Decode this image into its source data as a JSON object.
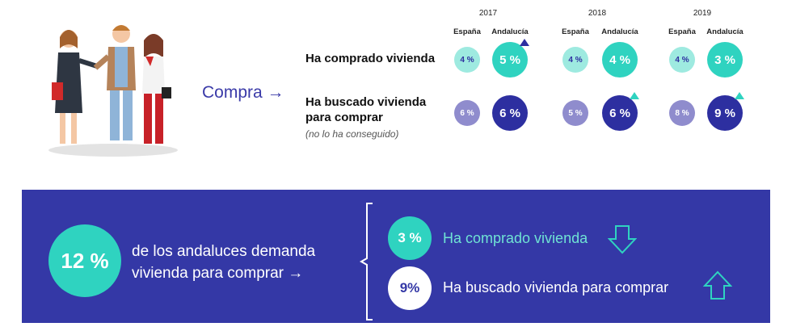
{
  "header": {
    "compra_label": "Compra →"
  },
  "rows": [
    {
      "label_line1": "Ha comprado vivienda",
      "label_line2": ""
    },
    {
      "label_line1": "Ha buscado vivienda",
      "label_line2": "para comprar",
      "note": "(no lo ha conseguido)"
    }
  ],
  "columns": {
    "espana": "España",
    "andalucia": "Andalucía"
  },
  "colors": {
    "teal": "#2fd3c0",
    "teal_light": "#9eeae0",
    "navy": "#2d2fa0",
    "lavender": "#8f8ccd",
    "band": "#3438a6"
  },
  "chart_data": {
    "type": "bubble_table",
    "years": [
      "2017",
      "2018",
      "2019"
    ],
    "series": [
      {
        "row": "Ha comprado vivienda",
        "espana_labels": [
          "4 %",
          "4 %",
          "4 %"
        ],
        "espana": [
          4,
          4,
          4
        ],
        "andalucia_labels": [
          "5 %",
          "4 %",
          "3 %"
        ],
        "andalucia": [
          5,
          4,
          3
        ],
        "trend_marker": [
          true,
          false,
          false
        ]
      },
      {
        "row": "Ha buscado vivienda para comprar",
        "espana_labels": [
          "6 %",
          "5 %",
          "8 %"
        ],
        "espana": [
          6,
          5,
          8
        ],
        "andalucia_labels": [
          "6 %",
          "6 %",
          "9 %"
        ],
        "andalucia": [
          6,
          6,
          9
        ],
        "trend_marker": [
          false,
          true,
          true
        ]
      }
    ]
  },
  "summary": {
    "total_value": "12 %",
    "total_text_line1": "de los andaluces demanda",
    "total_text_line2": "vivienda para comprar →",
    "items": [
      {
        "value": "3 %",
        "label": "Ha comprado vivienda",
        "trend": "down"
      },
      {
        "value": "9%",
        "label": "Ha buscado vivienda para comprar",
        "trend": "up"
      }
    ]
  }
}
